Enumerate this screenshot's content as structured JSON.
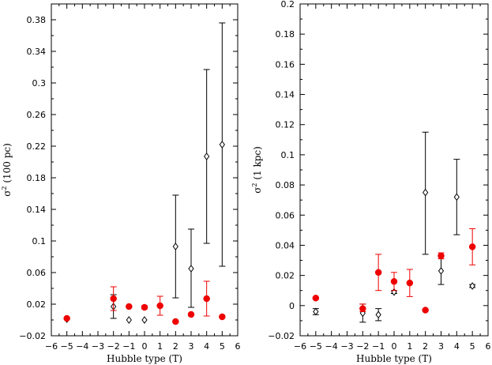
{
  "colors": {
    "black_series": "#000000",
    "red_series": "#ee0000",
    "frame": "#000000"
  },
  "chart_data": [
    {
      "type": "scatter",
      "xlabel": "Hubble type (T)",
      "ylabel": "σ² (100 pc)",
      "ylabel_base": "σ",
      "ylabel_sup": "2",
      "ylabel_rest": " (100 pc)",
      "xlim": [
        -6,
        6
      ],
      "ylim": [
        -0.02,
        0.4
      ],
      "xticks": [
        -6,
        -5,
        -4,
        -3,
        -2,
        -1,
        0,
        1,
        2,
        3,
        4,
        5,
        6
      ],
      "xtick_labels": [
        "−6",
        "−5",
        "−4",
        "−3",
        "−2",
        "−1",
        "0",
        "1",
        "2",
        "3",
        "4",
        "5",
        "6"
      ],
      "yticks": [
        -0.02,
        0.02,
        0.06,
        0.1,
        0.14,
        0.18,
        0.22,
        0.26,
        0.3,
        0.34,
        0.38
      ],
      "ytick_labels": [
        "−0.02",
        "0.02",
        "0.06",
        "0.1",
        "0.14",
        "0.18",
        "0.22",
        "0.26",
        "0.3",
        "0.34",
        "0.38"
      ],
      "grid": false,
      "series": [
        {
          "marker": "diamond-open",
          "color": "#000000",
          "points": [
            {
              "x": -5,
              "y": 0.001,
              "lo": 0.001,
              "hi": 0.001
            },
            {
              "x": -2,
              "y": 0.017,
              "lo": 0.002,
              "hi": 0.032
            },
            {
              "x": -1,
              "y": 0.0,
              "lo": 0.0,
              "hi": 0.0
            },
            {
              "x": 0,
              "y": 0.0,
              "lo": 0.0,
              "hi": 0.0
            },
            {
              "x": 2,
              "y": 0.093,
              "lo": 0.028,
              "hi": 0.158
            },
            {
              "x": 3,
              "y": 0.065,
              "lo": 0.016,
              "hi": 0.115
            },
            {
              "x": 4,
              "y": 0.207,
              "lo": 0.097,
              "hi": 0.317
            },
            {
              "x": 5,
              "y": 0.222,
              "lo": 0.068,
              "hi": 0.376
            }
          ]
        },
        {
          "marker": "circle-filled",
          "color": "#ee0000",
          "points": [
            {
              "x": -5,
              "y": 0.002,
              "lo": 0.002,
              "hi": 0.002
            },
            {
              "x": -2,
              "y": 0.027,
              "lo": 0.012,
              "hi": 0.042
            },
            {
              "x": -1,
              "y": 0.017,
              "lo": 0.017,
              "hi": 0.017
            },
            {
              "x": 0,
              "y": 0.016,
              "lo": 0.014,
              "hi": 0.018
            },
            {
              "x": 1,
              "y": 0.018,
              "lo": 0.006,
              "hi": 0.03
            },
            {
              "x": 2,
              "y": -0.002,
              "lo": -0.002,
              "hi": -0.002
            },
            {
              "x": 3,
              "y": 0.007,
              "lo": 0.007,
              "hi": 0.007
            },
            {
              "x": 4,
              "y": 0.027,
              "lo": 0.005,
              "hi": 0.049
            },
            {
              "x": 5,
              "y": 0.004,
              "lo": 0.004,
              "hi": 0.004
            }
          ]
        }
      ]
    },
    {
      "type": "scatter",
      "xlabel": "Hubble type (T)",
      "ylabel": "σ² (1 kpc)",
      "ylabel_base": "σ",
      "ylabel_sup": "2",
      "ylabel_rest": " (1 kpc)",
      "xlim": [
        -6,
        6
      ],
      "ylim": [
        -0.02,
        0.2
      ],
      "xticks": [
        -6,
        -5,
        -4,
        -3,
        -2,
        -1,
        0,
        1,
        2,
        3,
        4,
        5,
        6
      ],
      "xtick_labels": [
        "−6",
        "−5",
        "−4",
        "−3",
        "−2",
        "−1",
        "0",
        "1",
        "2",
        "3",
        "4",
        "5",
        "6"
      ],
      "yticks": [
        -0.02,
        0,
        0.02,
        0.04,
        0.06,
        0.08,
        0.1,
        0.12,
        0.14,
        0.16,
        0.18,
        0.2
      ],
      "ytick_labels": [
        "−0.02",
        "0",
        "0.02",
        "0.04",
        "0.06",
        "0.08",
        "0.1",
        "0.12",
        "0.14",
        "0.16",
        "0.18",
        "0.2"
      ],
      "grid": false,
      "series": [
        {
          "marker": "diamond-open",
          "color": "#000000",
          "points": [
            {
              "x": -5,
              "y": -0.004,
              "lo": -0.006,
              "hi": -0.002
            },
            {
              "x": -2,
              "y": -0.005,
              "lo": -0.011,
              "hi": 0.001
            },
            {
              "x": -1,
              "y": -0.006,
              "lo": -0.01,
              "hi": -0.002
            },
            {
              "x": 0,
              "y": 0.009,
              "lo": 0.008,
              "hi": 0.01
            },
            {
              "x": 2,
              "y": 0.075,
              "lo": 0.034,
              "hi": 0.115
            },
            {
              "x": 3,
              "y": 0.023,
              "lo": 0.014,
              "hi": 0.033
            },
            {
              "x": 4,
              "y": 0.072,
              "lo": 0.047,
              "hi": 0.097
            },
            {
              "x": 5,
              "y": 0.013,
              "lo": 0.012,
              "hi": 0.014
            }
          ]
        },
        {
          "marker": "circle-filled",
          "color": "#ee0000",
          "points": [
            {
              "x": -5,
              "y": 0.005,
              "lo": 0.005,
              "hi": 0.005
            },
            {
              "x": -2,
              "y": -0.002,
              "lo": -0.004,
              "hi": 0.001
            },
            {
              "x": -1,
              "y": 0.022,
              "lo": 0.01,
              "hi": 0.034
            },
            {
              "x": 0,
              "y": 0.016,
              "lo": 0.01,
              "hi": 0.022
            },
            {
              "x": 1,
              "y": 0.015,
              "lo": 0.006,
              "hi": 0.024
            },
            {
              "x": 2,
              "y": -0.003,
              "lo": -0.003,
              "hi": -0.003
            },
            {
              "x": 3,
              "y": 0.033,
              "lo": 0.031,
              "hi": 0.035
            },
            {
              "x": 4,
              "y": null,
              "lo": null,
              "hi": null
            },
            {
              "x": 5,
              "y": 0.039,
              "lo": 0.027,
              "hi": 0.051
            }
          ]
        }
      ]
    }
  ]
}
